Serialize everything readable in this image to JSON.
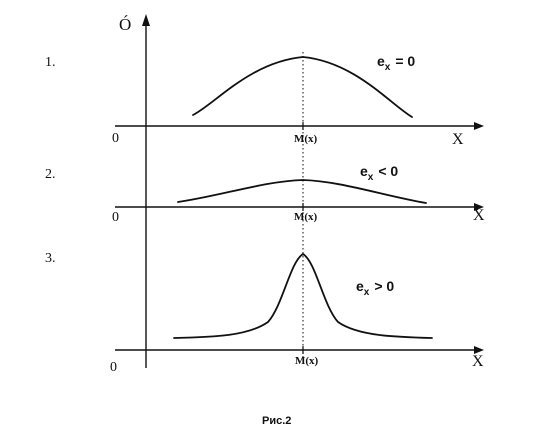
{
  "figure": {
    "y_axis_label": "Ó",
    "caption": "Рис.2"
  },
  "panels": [
    {
      "number": "1.",
      "origin_label": "0",
      "x_axis_label": "X",
      "mean_label": "M(x)",
      "cond_e": "e",
      "cond_sub": "x",
      "cond_rel": "= 0",
      "shape": "normal"
    },
    {
      "number": "2.",
      "origin_label": "0",
      "x_axis_label": "X",
      "mean_label": "M(x)",
      "cond_e": "e",
      "cond_sub": "x",
      "cond_rel": "< 0",
      "shape": "flat"
    },
    {
      "number": "3.",
      "origin_label": "0",
      "x_axis_label": "X",
      "mean_label": "M(x)",
      "cond_e": "e",
      "cond_sub": "x",
      "cond_rel": "> 0",
      "shape": "peaked"
    }
  ]
}
